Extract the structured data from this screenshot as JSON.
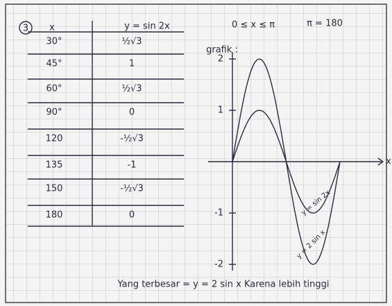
{
  "header": {
    "number": "3",
    "domain": "0 ≤ x ≤ π",
    "note": "π = 180"
  },
  "table": {
    "headers": [
      "x",
      "y = sin 2x"
    ],
    "rows": [
      [
        "30°",
        "½√3"
      ],
      [
        "45°",
        "1"
      ],
      [
        "60°",
        "½√3"
      ],
      [
        "90°",
        "0"
      ],
      [
        "120",
        "-½√3"
      ],
      [
        "135",
        "-1"
      ],
      [
        "150",
        "-½√3"
      ],
      [
        "180",
        "0"
      ]
    ]
  },
  "graph": {
    "label": "grafik :",
    "yticks": [
      "2",
      "1",
      "-1",
      "-2"
    ],
    "x_label": "x",
    "curve_labels": [
      "y = sin 2x",
      "y = 2 sin x"
    ]
  },
  "conclusion": "Yang terbesar = y = 2 sin x Karena lebih tinggi"
}
